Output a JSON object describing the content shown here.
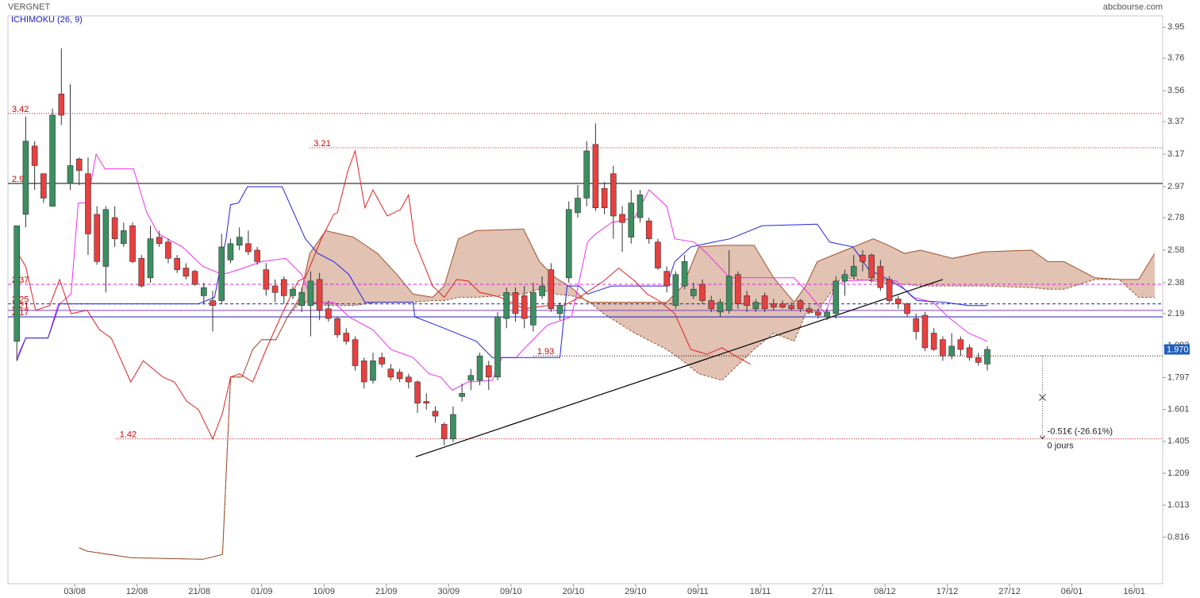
{
  "chart_data": {
    "type": "candlestick",
    "title": "VERGNET",
    "source": "abcbourse.com",
    "indicator": "ICHIMOKU (26, 9)",
    "xlim": [
      -1,
      128.7
    ],
    "xticks": [
      {
        "value": 6.5,
        "label": "03/08"
      },
      {
        "value": 13.5,
        "label": "12/08"
      },
      {
        "value": 20.5,
        "label": "21/08"
      },
      {
        "value": 27.5,
        "label": "01/09"
      },
      {
        "value": 34.5,
        "label": "10/09"
      },
      {
        "value": 41.5,
        "label": "21/09"
      },
      {
        "value": 48.5,
        "label": "30/09"
      },
      {
        "value": 55.5,
        "label": "09/10"
      },
      {
        "value": 62.5,
        "label": "20/10"
      },
      {
        "value": 69.5,
        "label": "29/10"
      },
      {
        "value": 76.5,
        "label": "09/11"
      },
      {
        "value": 83.5,
        "label": "18/11"
      },
      {
        "value": 90.5,
        "label": "27/11"
      },
      {
        "value": 97.5,
        "label": "08/12"
      },
      {
        "value": 104.5,
        "label": "17/12"
      },
      {
        "value": 111.5,
        "label": "27/12"
      },
      {
        "value": 118.5,
        "label": "06/01"
      },
      {
        "value": 125.5,
        "label": "16/01"
      }
    ],
    "ylim": [
      0.53,
      4.02
    ],
    "yticks": [
      3.95,
      3.76,
      3.56,
      3.37,
      3.17,
      2.97,
      2.78,
      2.58,
      2.38,
      2.19,
      1.993,
      1.797,
      1.601,
      1.405,
      1.209,
      1.013,
      0.816
    ],
    "up_color": "#3d8f62",
    "down_color": "#e8403f",
    "open": [
      2.02,
      2.8,
      3.22,
      3.05,
      2.85,
      3.54,
      2.99,
      3.14,
      3.05,
      2.8,
      2.48,
      2.78,
      2.62,
      2.73,
      2.53,
      2.41,
      2.66,
      2.63,
      2.53,
      2.47,
      2.45,
      2.3,
      2.27,
      2.27,
      2.52,
      2.61,
      2.62,
      2.58,
      2.46,
      2.36,
      2.4,
      2.3,
      2.24,
      2.24,
      2.4,
      2.22,
      2.16,
      2.07,
      2.03,
      1.9,
      1.78,
      1.92,
      1.85,
      1.83,
      1.8,
      1.77,
      1.65,
      1.59,
      1.51,
      1.42,
      1.68,
      1.78,
      1.78,
      1.87,
      1.8,
      2.16,
      2.32,
      2.3,
      2.12,
      2.3,
      2.46,
      2.19,
      2.41,
      2.81,
      2.9,
      3.23,
      2.96,
      3.05,
      2.8,
      2.66,
      2.78,
      2.76,
      2.63,
      2.45,
      2.24,
      2.36,
      2.3,
      2.37,
      2.27,
      2.2,
      2.21,
      2.43,
      2.3,
      2.22,
      2.3,
      2.25,
      2.25,
      2.24,
      2.27,
      2.22,
      2.2,
      2.17,
      2.19,
      2.39,
      2.42,
      2.55,
      2.55,
      2.48,
      2.4,
      2.28,
      2.25,
      2.16,
      2.18,
      2.07,
      2.03,
      1.93,
      2.03,
      1.98,
      1.92,
      1.88
    ],
    "high": [
      2.73,
      3.4,
      3.25,
      3.05,
      3.45,
      3.82,
      3.6,
      3.15,
      3.15,
      2.85,
      2.85,
      2.85,
      2.75,
      2.75,
      2.55,
      2.73,
      2.7,
      2.65,
      2.55,
      2.5,
      2.46,
      2.38,
      2.33,
      2.68,
      2.65,
      2.72,
      2.7,
      2.6,
      2.5,
      2.4,
      2.42,
      2.36,
      2.35,
      2.45,
      2.44,
      2.27,
      2.17,
      2.1,
      2.05,
      1.92,
      1.95,
      1.95,
      1.88,
      1.85,
      1.82,
      1.78,
      1.7,
      1.62,
      1.52,
      1.62,
      1.76,
      1.85,
      1.95,
      1.9,
      2.2,
      2.35,
      2.35,
      2.36,
      2.38,
      2.42,
      2.5,
      2.26,
      2.88,
      2.98,
      3.25,
      3.36,
      3.0,
      3.1,
      2.85,
      2.95,
      2.95,
      2.78,
      2.65,
      2.48,
      2.45,
      2.55,
      2.38,
      2.4,
      2.3,
      2.28,
      2.58,
      2.45,
      2.33,
      2.28,
      2.32,
      2.28,
      2.27,
      2.26,
      2.28,
      2.24,
      2.22,
      2.22,
      2.42,
      2.46,
      2.55,
      2.58,
      2.56,
      2.52,
      2.42,
      2.3,
      2.26,
      2.19,
      2.2,
      2.1,
      2.05,
      2.07,
      2.05,
      2.0,
      1.95,
      1.99
    ],
    "low": [
      1.9,
      2.72,
      2.95,
      2.87,
      2.85,
      3.35,
      2.95,
      2.98,
      2.55,
      2.49,
      2.32,
      2.6,
      2.6,
      2.5,
      2.35,
      2.38,
      2.6,
      2.5,
      2.44,
      2.4,
      2.36,
      2.25,
      2.08,
      2.25,
      2.5,
      2.58,
      2.55,
      2.49,
      2.3,
      2.26,
      2.25,
      2.28,
      2.2,
      2.05,
      2.15,
      2.14,
      2.04,
      2.0,
      1.84,
      1.73,
      1.76,
      1.86,
      1.78,
      1.77,
      1.73,
      1.58,
      1.6,
      1.52,
      1.38,
      1.4,
      1.65,
      1.72,
      1.75,
      1.72,
      1.78,
      2.1,
      2.14,
      2.1,
      2.08,
      2.28,
      2.2,
      2.15,
      2.38,
      2.78,
      2.85,
      2.82,
      2.8,
      2.65,
      2.57,
      2.62,
      2.75,
      2.62,
      2.46,
      2.32,
      2.22,
      2.34,
      2.28,
      2.25,
      2.2,
      2.17,
      2.19,
      2.22,
      2.2,
      2.2,
      2.2,
      2.21,
      2.22,
      2.21,
      2.2,
      2.19,
      2.16,
      2.15,
      2.16,
      2.3,
      2.4,
      2.45,
      2.38,
      2.33,
      2.25,
      2.22,
      2.17,
      2.03,
      1.96,
      1.96,
      1.9,
      1.91,
      1.93,
      1.9,
      1.87,
      1.84
    ],
    "close": [
      2.73,
      3.25,
      3.1,
      2.9,
      3.41,
      3.41,
      3.1,
      3.07,
      2.68,
      2.51,
      2.83,
      2.65,
      2.7,
      2.51,
      2.36,
      2.65,
      2.62,
      2.53,
      2.46,
      2.42,
      2.37,
      2.35,
      2.24,
      2.6,
      2.62,
      2.66,
      2.57,
      2.51,
      2.34,
      2.32,
      2.3,
      2.34,
      2.32,
      2.39,
      2.21,
      2.16,
      2.06,
      2.02,
      1.87,
      1.77,
      1.9,
      1.88,
      1.8,
      1.79,
      1.77,
      1.64,
      1.64,
      1.56,
      1.42,
      1.57,
      1.7,
      1.81,
      1.93,
      1.8,
      2.17,
      2.32,
      2.19,
      2.16,
      2.32,
      2.36,
      2.22,
      2.24,
      2.83,
      2.9,
      3.19,
      2.84,
      2.84,
      2.79,
      2.75,
      2.87,
      2.92,
      2.65,
      2.47,
      2.36,
      2.43,
      2.51,
      2.34,
      2.27,
      2.22,
      2.26,
      2.42,
      2.25,
      2.24,
      2.26,
      2.22,
      2.23,
      2.23,
      2.22,
      2.22,
      2.2,
      2.18,
      2.2,
      2.39,
      2.43,
      2.48,
      2.51,
      2.41,
      2.35,
      2.27,
      2.25,
      2.19,
      2.08,
      1.98,
      1.97,
      1.93,
      1.99,
      1.97,
      1.92,
      1.89,
      1.97
    ],
    "lines": [
      {
        "color": "#f030f0",
        "x": [
          0,
          1,
          3.5,
          4.6,
          6.1,
          6.9,
          7.9,
          8.9,
          9.9,
          13.1,
          14.6,
          15.9,
          18.6,
          20.9,
          23.1,
          24.9,
          27.5,
          30.2,
          32,
          33.3,
          35.6,
          37.3,
          40,
          42,
          44.5,
          46.3,
          47.6,
          48.9,
          50.7,
          53.4,
          54.5,
          56.1,
          56.9,
          59.6,
          62.3,
          64.1,
          65,
          66.8,
          69.4,
          71,
          73,
          73.9,
          76.1,
          77.5,
          80.1,
          87.3,
          89,
          90.8,
          91.9,
          93,
          97.1,
          98.8,
          100.6,
          102.9,
          104.6,
          106.9,
          109
        ],
        "values": [
          1.92,
          2.04,
          2.04,
          2.24,
          2.31,
          2.87,
          2.87,
          3.17,
          3.08,
          3.08,
          2.81,
          2.68,
          2.6,
          2.48,
          2.43,
          2.46,
          2.51,
          2.53,
          2.43,
          2.26,
          2.26,
          2.17,
          2.09,
          1.97,
          1.92,
          1.82,
          1.8,
          1.72,
          1.77,
          1.78,
          1.92,
          1.92,
          1.97,
          2.12,
          2.17,
          2.63,
          2.68,
          2.75,
          2.78,
          2.95,
          2.85,
          2.65,
          2.63,
          2.56,
          2.41,
          2.41,
          2.31,
          2.19,
          2.36,
          2.39,
          2.4,
          2.39,
          2.29,
          2.26,
          2.17,
          2.07,
          2.02
        ]
      },
      {
        "color": "#2222e0",
        "x": [
          0,
          1,
          3.5,
          4.8,
          20.4,
          22.2,
          23.5,
          24,
          24.9,
          25.9,
          29.8,
          32.4,
          33.8,
          35.6,
          37.3,
          39.1,
          44.5,
          44.7,
          47.1,
          51.6,
          53.4,
          61,
          61.8,
          63.2,
          64.1,
          66.8,
          73,
          73.9,
          75.7,
          78.3,
          80.1,
          83.7,
          89.9,
          91.3,
          93.9,
          95.7,
          97.9,
          99.7,
          101.1,
          104.2,
          106.9,
          109
        ],
        "values": [
          1.9,
          2.04,
          2.04,
          2.25,
          2.25,
          2.29,
          2.65,
          2.86,
          2.87,
          2.97,
          2.97,
          2.65,
          2.56,
          2.51,
          2.43,
          2.26,
          2.26,
          2.17,
          2.12,
          2.02,
          1.92,
          1.92,
          2.36,
          2.36,
          2.31,
          2.36,
          2.36,
          2.51,
          2.6,
          2.63,
          2.65,
          2.73,
          2.74,
          2.63,
          2.6,
          2.46,
          2.4,
          2.34,
          2.27,
          2.26,
          2.24,
          2.24
        ]
      },
      {
        "color": "#e02020",
        "x": [
          0,
          1,
          2.1,
          3.7,
          4.8,
          6.1,
          7.9,
          9.3,
          10.6,
          12.8,
          14.2,
          16.4,
          17.7,
          19.1,
          20.4,
          22,
          23.1,
          24,
          25,
          26.5,
          28,
          29.8,
          31.6,
          32.4,
          34.2,
          35.6,
          36,
          37.2,
          38,
          39.1,
          40,
          41.6,
          43.1,
          44,
          44.7,
          46.7,
          48,
          49.4,
          50.7,
          52,
          52.9,
          54.3,
          57,
          59.6,
          61.4,
          63.2,
          65.9,
          67.6,
          69.4,
          70.8,
          72.1,
          73.9,
          75.7,
          77.5,
          79.2,
          81,
          82.4
        ],
        "values": [
          2.57,
          2.48,
          2.21,
          2.24,
          2.4,
          2.19,
          2.21,
          2.09,
          2.04,
          1.77,
          1.9,
          1.8,
          1.77,
          1.65,
          1.6,
          1.42,
          1.58,
          1.8,
          1.82,
          1.77,
          1.97,
          2.19,
          2.39,
          2.41,
          2.65,
          2.8,
          2.81,
          3.07,
          3.19,
          2.84,
          2.95,
          2.79,
          2.83,
          2.92,
          2.63,
          2.36,
          2.29,
          2.4,
          2.39,
          2.32,
          2.31,
          2.29,
          2.22,
          2.24,
          2.24,
          2.29,
          2.39,
          2.47,
          2.39,
          2.31,
          2.27,
          2.19,
          1.97,
          1.94,
          1.98,
          1.92,
          1.88
        ]
      }
    ],
    "cloud": {
      "color": "#a0522d",
      "fill": "#d9b3a0",
      "x": [
        7,
        7.9,
        12.8,
        20.9,
        23.1,
        24,
        25.3,
        26.5,
        27.5,
        29.1,
        30.4,
        31.8,
        32.9,
        34.7,
        37.8,
        40.5,
        42.7,
        44.5,
        46.7,
        48,
        49.6,
        51.6,
        56.9,
        58.7,
        60.5,
        62.3,
        64.1,
        65.9,
        69.4,
        73,
        74.8,
        76.6,
        79.2,
        82.8,
        85,
        87.3,
        88.6,
        89.9,
        92.6,
        96.2,
        97.9,
        99.7,
        101.5,
        105.1,
        108.6,
        114,
        115.8,
        117.6,
        121.1,
        123.8,
        126,
        126.9,
        127.8
      ],
      "span_a": [
        0.75,
        0.73,
        0.69,
        0.68,
        0.71,
        1.8,
        1.8,
        1.97,
        2.03,
        2.03,
        2.17,
        2.29,
        2.56,
        2.7,
        2.66,
        2.56,
        2.43,
        2.31,
        2.29,
        2.36,
        2.65,
        2.7,
        2.71,
        2.51,
        2.41,
        2.35,
        2.26,
        2.26,
        2.26,
        2.26,
        2.36,
        2.6,
        2.61,
        2.61,
        2.41,
        2.26,
        2.36,
        2.51,
        2.57,
        2.65,
        2.61,
        2.56,
        2.58,
        2.53,
        2.57,
        2.58,
        2.51,
        2.51,
        2.41,
        2.4,
        2.4,
        2.48,
        2.56
      ],
      "span_b": [
        0.75,
        0.73,
        0.69,
        0.68,
        0.71,
        1.8,
        1.8,
        1.97,
        2.03,
        2.03,
        2.17,
        2.26,
        2.26,
        2.24,
        2.24,
        2.26,
        2.26,
        2.26,
        2.27,
        2.27,
        2.29,
        2.29,
        2.31,
        2.34,
        2.31,
        2.3,
        2.27,
        2.19,
        2.07,
        1.97,
        1.9,
        1.82,
        1.78,
        1.97,
        2.07,
        2.02,
        2.19,
        2.2,
        2.41,
        2.39,
        2.37,
        2.37,
        2.36,
        2.36,
        2.36,
        2.35,
        2.34,
        2.34,
        2.4,
        2.4,
        2.29,
        2.29,
        2.29
      ]
    },
    "label_color": "#d00000",
    "levels": [
      {
        "value": 3.42,
        "color": "#d00000",
        "style": "dotted"
      },
      {
        "value": 3.21,
        "color": "#d00000",
        "style": "dotted",
        "x0": 32.9
      },
      {
        "value": 2.99,
        "color": "#000000",
        "style": "solid"
      },
      {
        "value": 2.37,
        "color": "#e020e0",
        "style": "dashed"
      },
      {
        "value": 2.25,
        "color": "#2020c0",
        "style": "dashed"
      },
      {
        "value": 2.21,
        "color": "#8040c0",
        "style": "solid"
      },
      {
        "value": 2.17,
        "color": "#2020c0",
        "style": "solid"
      },
      {
        "value": 1.93,
        "color": "#000000",
        "style": "dotted",
        "x0": 58
      },
      {
        "value": 1.42,
        "color": "#d00000",
        "style": "dotted",
        "x0": 11.1
      }
    ],
    "trend": {
      "color": "#000000",
      "x": [
        44.8,
        104
      ],
      "values": [
        1.31,
        2.4
      ]
    },
    "last": {
      "value": 1.97,
      "label": "1.970",
      "color": "#1f5fbf"
    },
    "measure": {
      "x": 115.2,
      "from": 1.93,
      "to": 1.42,
      "label": "-0.51€ (-26.61%)",
      "duration": "0 jours"
    }
  }
}
